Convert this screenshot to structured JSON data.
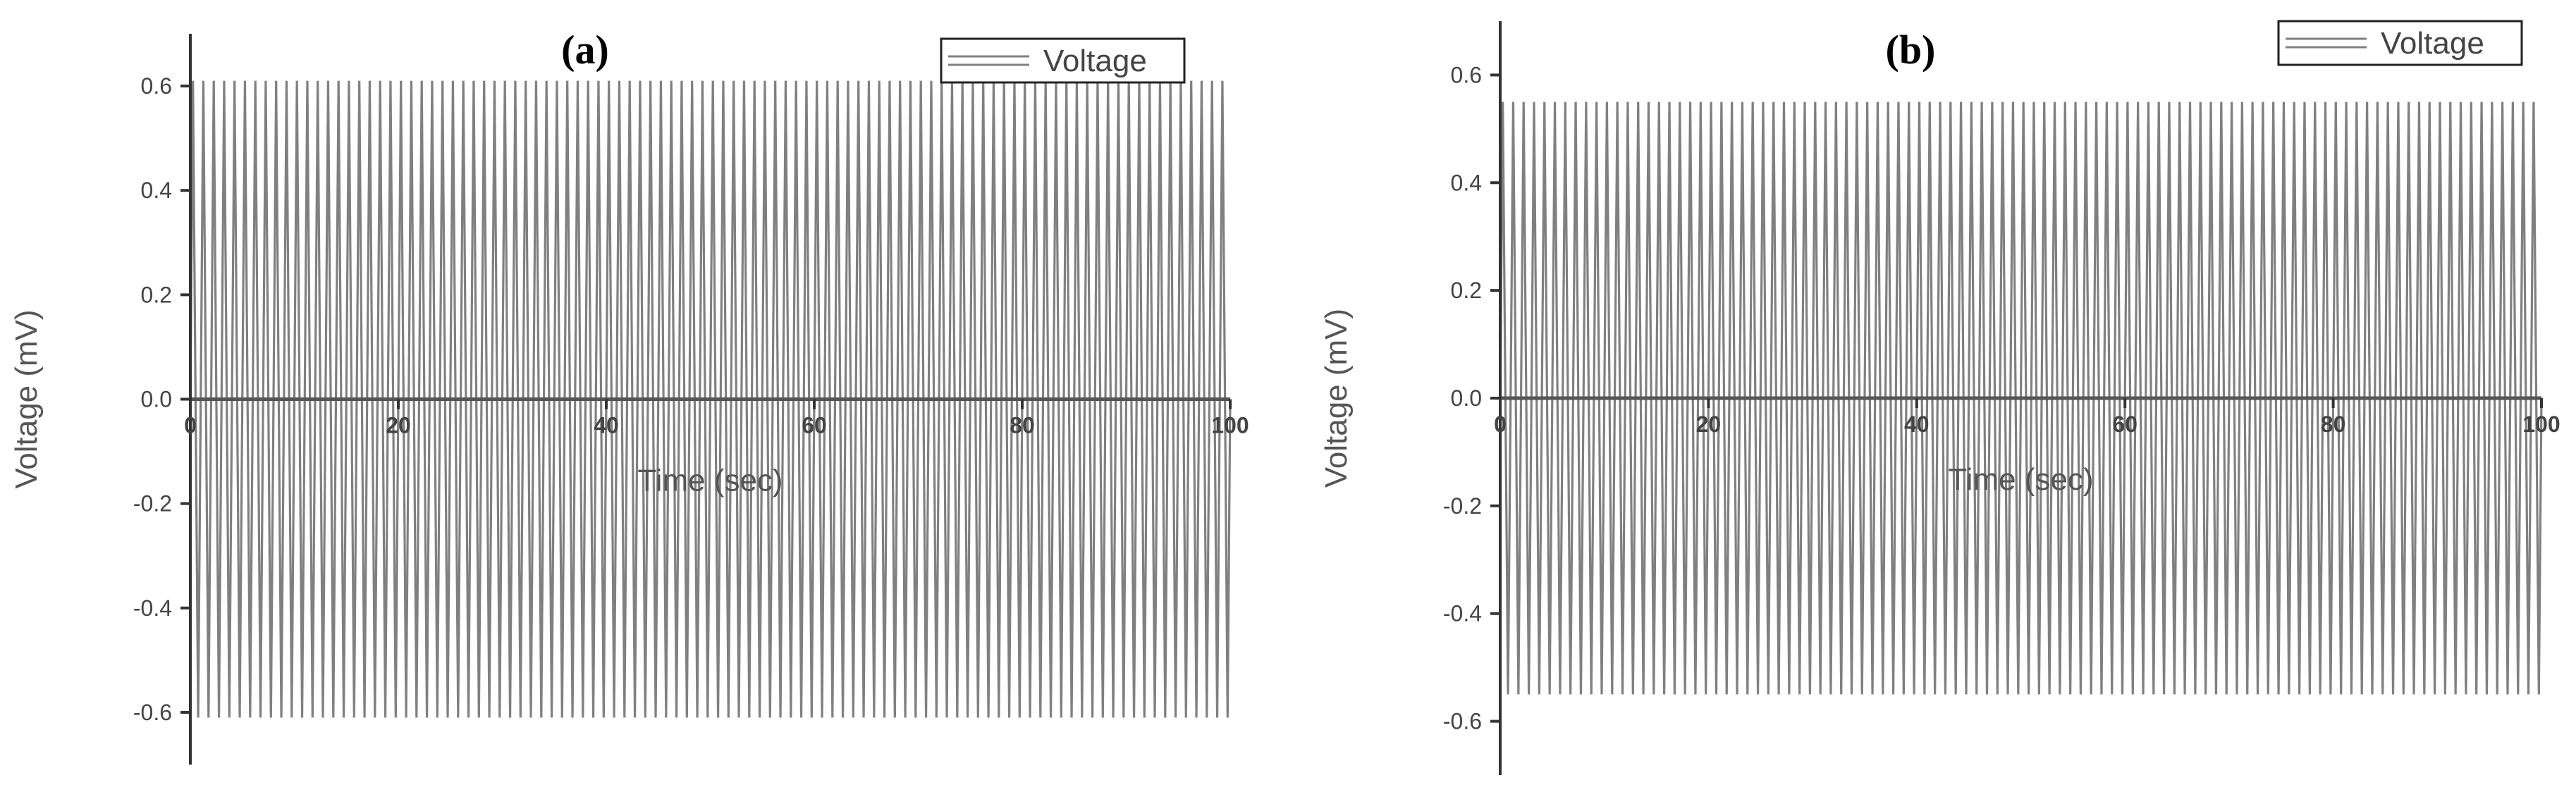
{
  "chart_data": [
    {
      "type": "line",
      "panel_label": "(a)",
      "title": "",
      "xlabel": "Time (sec)",
      "ylabel": "Voltage (mV)",
      "xlim": [
        0,
        100
      ],
      "ylim": [
        -0.7,
        0.7
      ],
      "x_ticks": [
        0,
        20,
        40,
        60,
        80,
        100
      ],
      "x_tick_labels": [
        "0",
        "20",
        "40",
        "60",
        "80",
        "100"
      ],
      "y_ticks": [
        -0.6,
        -0.4,
        -0.2,
        0.0,
        0.2,
        0.4,
        0.6
      ],
      "y_tick_labels": [
        "-0.6",
        "-0.4",
        "-0.2",
        "0.0",
        "0.2",
        "0.4",
        "0.6"
      ],
      "grid": false,
      "legend": {
        "position": "top-right",
        "entries": [
          "Voltage"
        ]
      },
      "series": [
        {
          "name": "Voltage",
          "color": "#808080",
          "waveform": "oscillation",
          "amplitude": 0.61,
          "cycles": 100,
          "x_range": [
            0,
            100
          ]
        }
      ]
    },
    {
      "type": "line",
      "panel_label": "(b)",
      "title": "",
      "xlabel": "Time (sec)",
      "ylabel": "Voltage (mV)",
      "xlim": [
        0,
        100
      ],
      "ylim": [
        -0.7,
        0.7
      ],
      "x_ticks": [
        0,
        20,
        40,
        60,
        80,
        100
      ],
      "x_tick_labels": [
        "0",
        "20",
        "40",
        "60",
        "80",
        "100"
      ],
      "y_ticks": [
        -0.6,
        -0.4,
        -0.2,
        0.0,
        0.2,
        0.4,
        0.6
      ],
      "y_tick_labels": [
        "-0.6",
        "-0.4",
        "-0.2",
        "0.0",
        "0.2",
        "0.4",
        "0.6"
      ],
      "grid": false,
      "legend": {
        "position": "top-right",
        "entries": [
          "Voltage"
        ]
      },
      "series": [
        {
          "name": "Voltage",
          "color": "#808080",
          "waveform": "oscillation",
          "amplitude": 0.55,
          "cycles": 100,
          "x_range": [
            0,
            100
          ]
        }
      ]
    }
  ],
  "colors": {
    "axis": "#333333",
    "zero_line": "#555555",
    "series": "#808080"
  }
}
